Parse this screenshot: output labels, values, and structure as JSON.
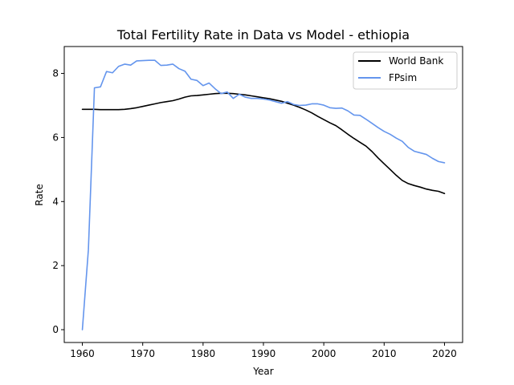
{
  "chart_data": {
    "type": "line",
    "title": "Total Fertility Rate in Data vs Model - ethiopia",
    "xlabel": "Year",
    "ylabel": "Rate",
    "xlim": [
      1957,
      2023
    ],
    "ylim": [
      -0.4,
      8.84
    ],
    "xticks": [
      1960,
      1970,
      1980,
      1990,
      2000,
      2010,
      2020
    ],
    "yticks": [
      0,
      2,
      4,
      6,
      8
    ],
    "grid": false,
    "legend_position": "top-right",
    "series": [
      {
        "name": "World Bank",
        "color": "#000000",
        "x": [
          1960,
          1961,
          1962,
          1963,
          1964,
          1965,
          1966,
          1967,
          1968,
          1969,
          1970,
          1971,
          1972,
          1973,
          1974,
          1975,
          1976,
          1977,
          1978,
          1979,
          1980,
          1981,
          1982,
          1983,
          1984,
          1985,
          1986,
          1987,
          1988,
          1989,
          1990,
          1991,
          1992,
          1993,
          1994,
          1995,
          1996,
          1997,
          1998,
          1999,
          2000,
          2001,
          2002,
          2003,
          2004,
          2005,
          2006,
          2007,
          2008,
          2009,
          2010,
          2011,
          2012,
          2013,
          2014,
          2015,
          2016,
          2017,
          2018,
          2019,
          2020
        ],
        "y": [
          6.88,
          6.88,
          6.88,
          6.87,
          6.87,
          6.87,
          6.87,
          6.88,
          6.9,
          6.93,
          6.97,
          7.01,
          7.05,
          7.09,
          7.12,
          7.15,
          7.2,
          7.26,
          7.3,
          7.31,
          7.33,
          7.35,
          7.37,
          7.38,
          7.38,
          7.37,
          7.35,
          7.33,
          7.3,
          7.27,
          7.24,
          7.21,
          7.17,
          7.13,
          7.07,
          7.01,
          6.94,
          6.86,
          6.77,
          6.66,
          6.56,
          6.46,
          6.37,
          6.24,
          6.1,
          5.97,
          5.85,
          5.73,
          5.56,
          5.36,
          5.18,
          5.0,
          4.82,
          4.66,
          4.56,
          4.5,
          4.45,
          4.39,
          4.35,
          4.32,
          4.25
        ]
      },
      {
        "name": "FPsim",
        "color": "#6495ed",
        "x": [
          1960,
          1961,
          1962,
          1963,
          1964,
          1965,
          1966,
          1967,
          1968,
          1969,
          1970,
          1971,
          1972,
          1973,
          1974,
          1975,
          1976,
          1977,
          1978,
          1979,
          1980,
          1981,
          1982,
          1983,
          1984,
          1985,
          1986,
          1987,
          1988,
          1989,
          1990,
          1991,
          1992,
          1993,
          1994,
          1995,
          1996,
          1997,
          1998,
          1999,
          2000,
          2001,
          2002,
          2003,
          2004,
          2005,
          2006,
          2007,
          2008,
          2009,
          2010,
          2011,
          2012,
          2013,
          2014,
          2015,
          2016,
          2017,
          2018,
          2019,
          2020
        ],
        "y": [
          0.0,
          2.5,
          7.55,
          7.58,
          8.06,
          8.02,
          8.22,
          8.29,
          8.26,
          8.39,
          8.4,
          8.41,
          8.41,
          8.25,
          8.26,
          8.29,
          8.15,
          8.07,
          7.82,
          7.78,
          7.62,
          7.7,
          7.52,
          7.37,
          7.42,
          7.22,
          7.35,
          7.26,
          7.22,
          7.22,
          7.2,
          7.17,
          7.12,
          7.07,
          7.12,
          7.03,
          7.0,
          7.01,
          7.05,
          7.05,
          7.01,
          6.93,
          6.91,
          6.92,
          6.83,
          6.7,
          6.69,
          6.57,
          6.44,
          6.31,
          6.19,
          6.1,
          5.98,
          5.88,
          5.69,
          5.57,
          5.52,
          5.47,
          5.35,
          5.25,
          5.21
        ]
      }
    ]
  }
}
